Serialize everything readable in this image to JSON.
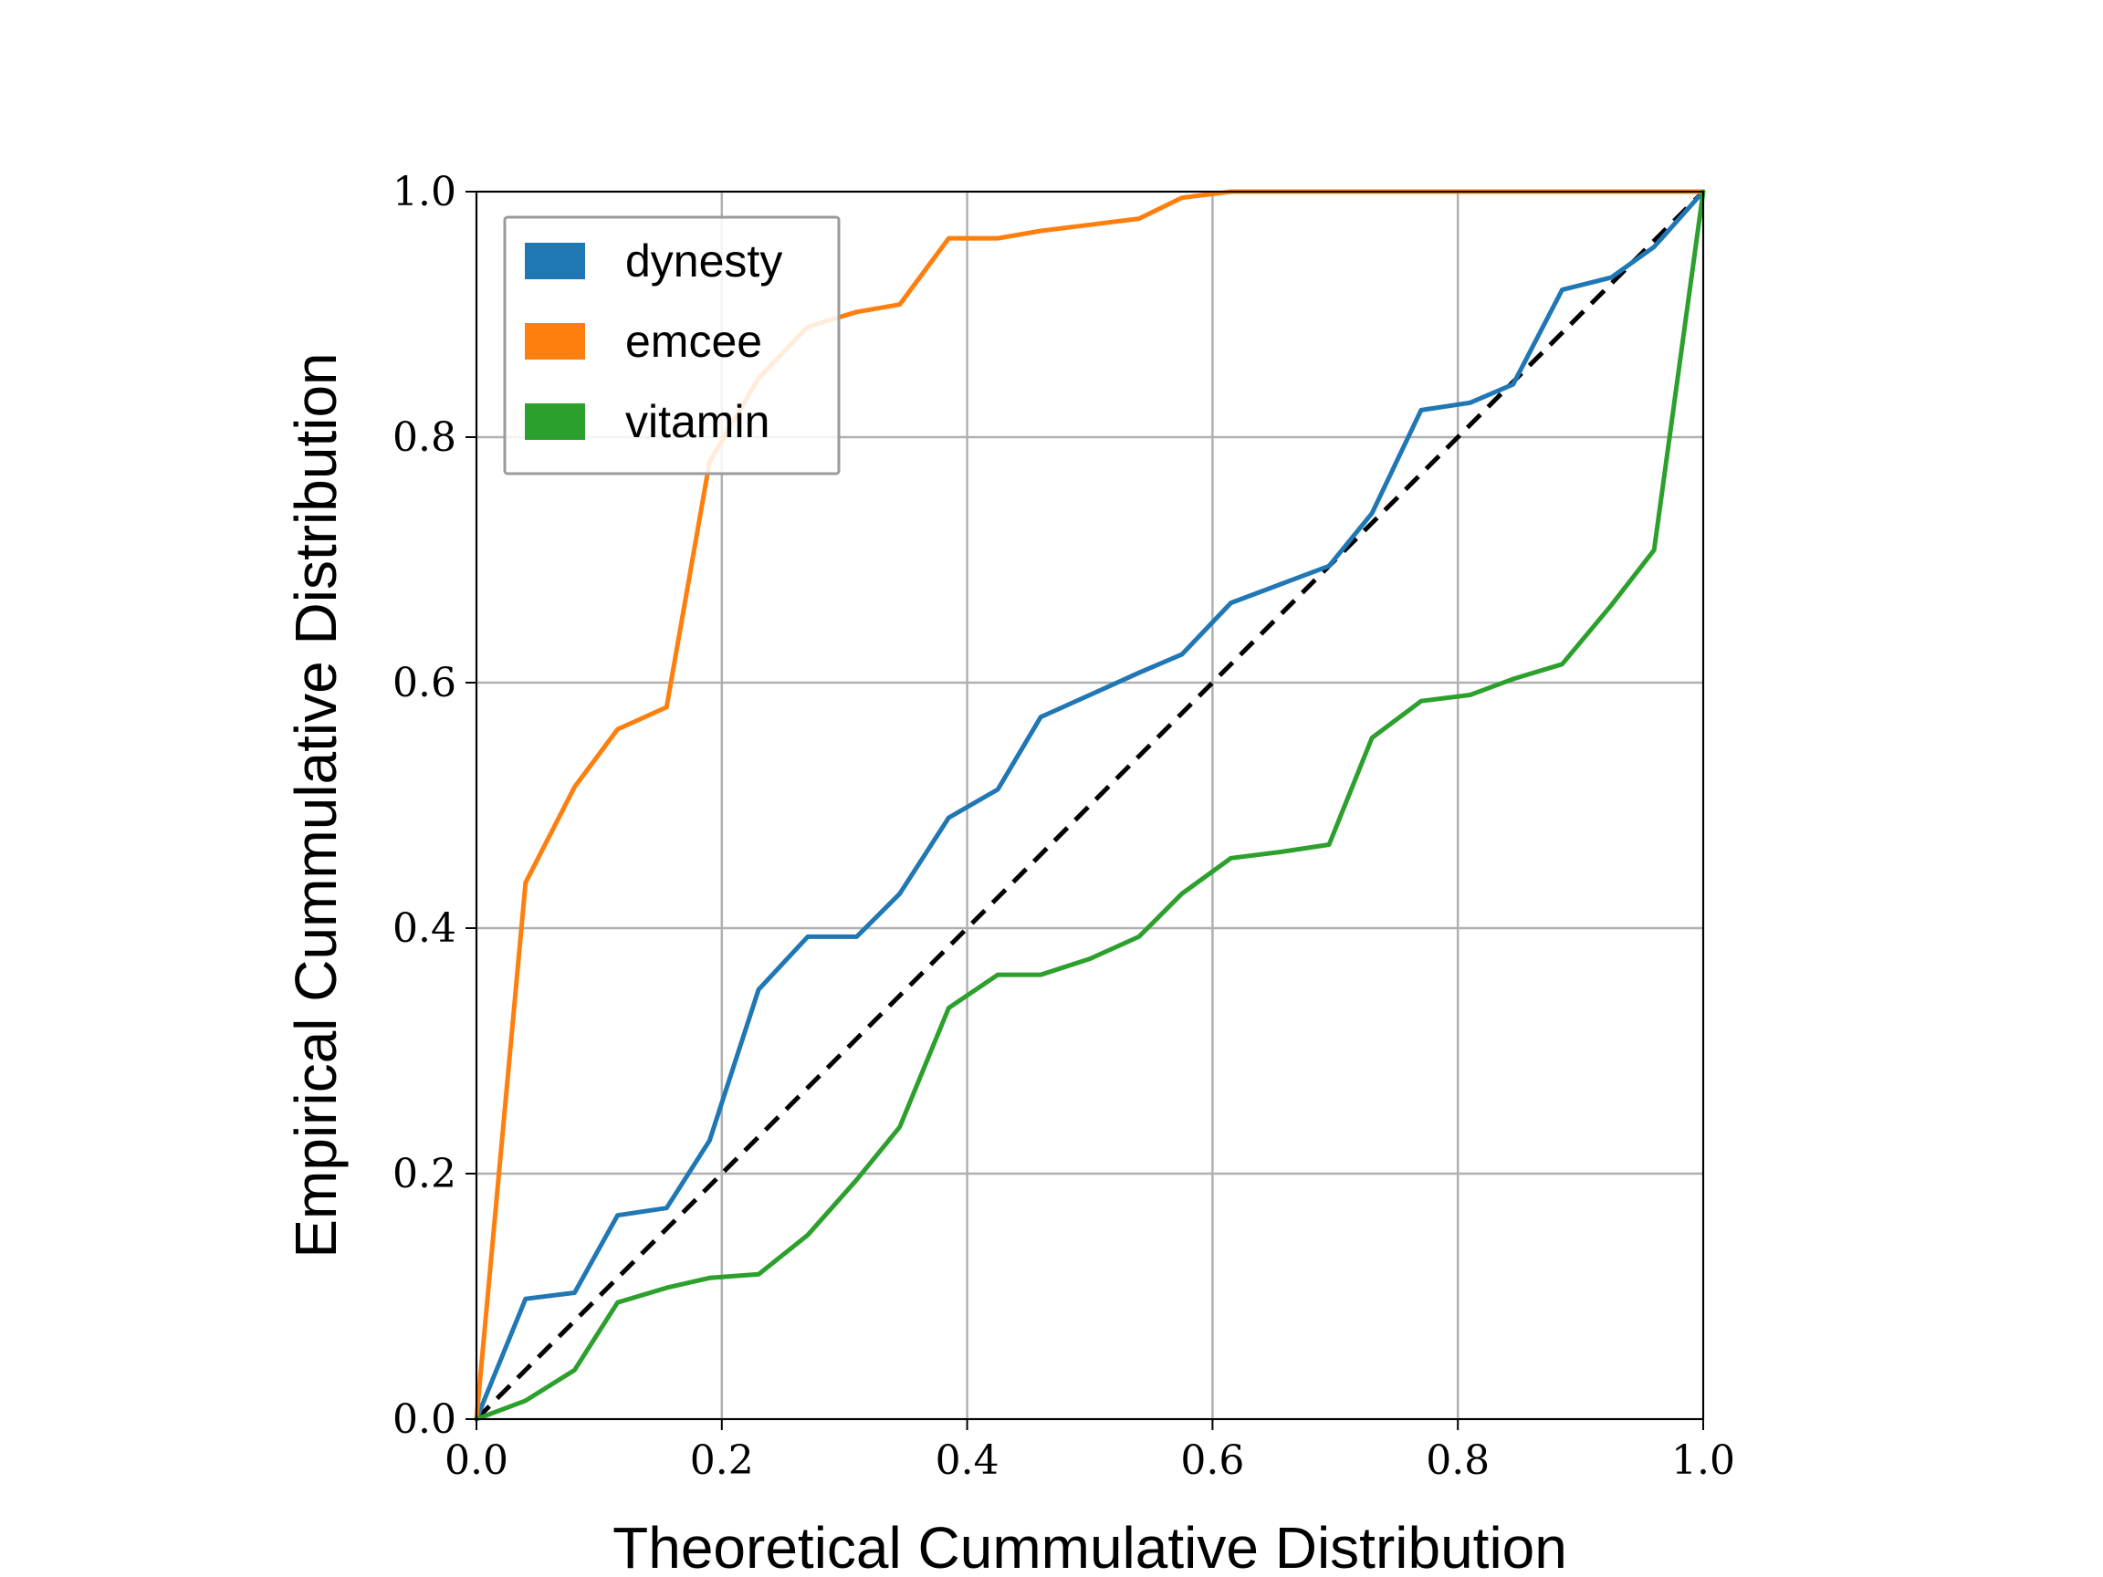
{
  "chart_data": {
    "type": "line",
    "title": "",
    "xlabel": "Theoretical Cummulative Distribution",
    "ylabel": "Empirical Cummulative Distribution",
    "xlim": [
      0,
      1
    ],
    "ylim": [
      0,
      1
    ],
    "xticks": [
      "0.0",
      "0.2",
      "0.4",
      "0.6",
      "0.8",
      "1.0"
    ],
    "yticks": [
      "0.0",
      "0.2",
      "0.4",
      "0.6",
      "0.8",
      "1.0"
    ],
    "grid": true,
    "legend_position": "top-left",
    "reference_line": {
      "style": "dashed",
      "color": "#000000",
      "x": [
        0,
        1
      ],
      "y": [
        0,
        1
      ]
    },
    "x": [
      0.0,
      0.04,
      0.08,
      0.115,
      0.155,
      0.19,
      0.23,
      0.27,
      0.31,
      0.345,
      0.385,
      0.425,
      0.46,
      0.5,
      0.54,
      0.575,
      0.615,
      0.655,
      0.695,
      0.73,
      0.77,
      0.81,
      0.845,
      0.885,
      0.925,
      0.96,
      1.0
    ],
    "series": [
      {
        "name": "dynesty",
        "color": "#1f77b4",
        "values": [
          0.0,
          0.098,
          0.103,
          0.166,
          0.172,
          0.227,
          0.35,
          0.393,
          0.393,
          0.428,
          0.49,
          0.513,
          0.572,
          0.59,
          0.608,
          0.623,
          0.665,
          0.68,
          0.695,
          0.738,
          0.822,
          0.828,
          0.843,
          0.92,
          0.93,
          0.955,
          1.0
        ]
      },
      {
        "name": "emcee",
        "color": "#ff7f0e",
        "values": [
          0.0,
          0.437,
          0.515,
          0.562,
          0.58,
          0.78,
          0.848,
          0.89,
          0.902,
          0.908,
          0.962,
          0.962,
          0.968,
          0.973,
          0.978,
          0.995,
          1.0,
          1.0,
          1.0,
          1.0,
          1.0,
          1.0,
          1.0,
          1.0,
          1.0,
          1.0,
          1.0
        ]
      },
      {
        "name": "vitamin",
        "color": "#2ca02c",
        "values": [
          0.0,
          0.015,
          0.04,
          0.095,
          0.107,
          0.115,
          0.118,
          0.15,
          0.195,
          0.238,
          0.335,
          0.362,
          0.362,
          0.375,
          0.393,
          0.428,
          0.457,
          0.462,
          0.468,
          0.555,
          0.585,
          0.59,
          0.603,
          0.615,
          0.663,
          0.708,
          1.0
        ]
      }
    ]
  }
}
